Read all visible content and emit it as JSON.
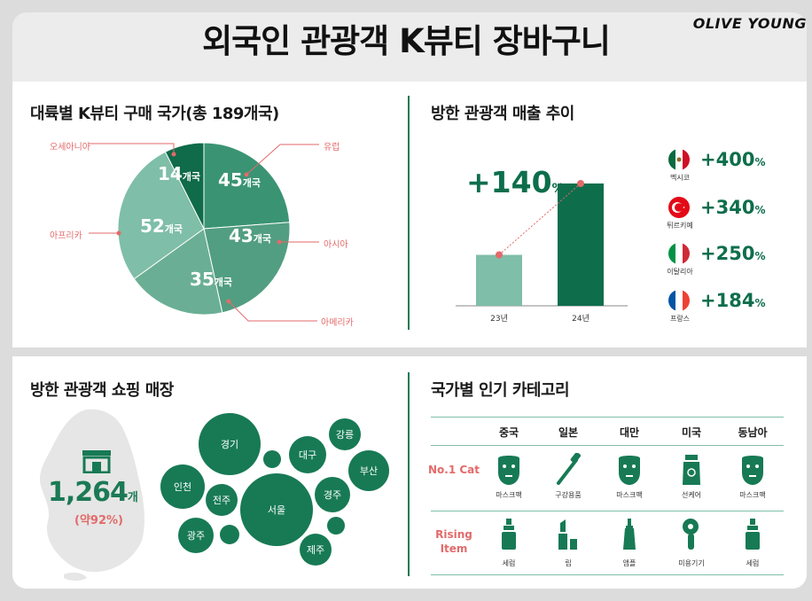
{
  "header": {
    "title": "외국인 관광객 K뷰티 장바구니",
    "brand": "OLIVE YOUNG"
  },
  "continents": {
    "title": "대륙별 K뷰티 구매 국가(총 189개국)",
    "slices": [
      {
        "name": "유럽",
        "value": 45,
        "label": "45",
        "unit": "개국"
      },
      {
        "name": "아시아",
        "value": 43,
        "label": "43",
        "unit": "개국"
      },
      {
        "name": "아메리카",
        "value": 35,
        "label": "35",
        "unit": "개국"
      },
      {
        "name": "아프리카",
        "value": 52,
        "label": "52",
        "unit": "개국"
      },
      {
        "name": "오세아니아",
        "value": 14,
        "label": "14",
        "unit": "개국"
      }
    ]
  },
  "sales": {
    "title": "방한 관광객 매출 추이",
    "growth": "+140",
    "growth_unit": "%",
    "bars": [
      {
        "year": "23년",
        "value": 100
      },
      {
        "year": "24년",
        "value": 240
      }
    ],
    "countries": [
      {
        "name": "멕시코",
        "value": "+400",
        "unit": "%",
        "flag": "mexico"
      },
      {
        "name": "튀르키예",
        "value": "+340",
        "unit": "%",
        "flag": "turkiye"
      },
      {
        "name": "이탈리아",
        "value": "+250",
        "unit": "%",
        "flag": "italy"
      },
      {
        "name": "프랑스",
        "value": "+184",
        "unit": "%",
        "flag": "france"
      }
    ]
  },
  "stores": {
    "title": "방한 관광객 쇼핑 매장",
    "count": "1,264",
    "count_unit": "개",
    "share": "(약92%)",
    "regions": [
      "경기",
      "대구",
      "강릉",
      "부산",
      "인천",
      "전주",
      "서울",
      "경주",
      "광주",
      "제주"
    ]
  },
  "categories": {
    "title": "국가별 인기 카테고리",
    "columns": [
      "중국",
      "일본",
      "대만",
      "미국",
      "동남아"
    ],
    "rows": [
      {
        "label": "No.1 Cat",
        "items": [
          {
            "label": "마스크팩",
            "icon": "mask-icon"
          },
          {
            "label": "구강용품",
            "icon": "toothbrush-icon"
          },
          {
            "label": "마스크팩",
            "icon": "mask-icon"
          },
          {
            "label": "선케어",
            "icon": "sunscreen-icon"
          },
          {
            "label": "마스크팩",
            "icon": "mask-icon"
          }
        ]
      },
      {
        "label": "Rising Item",
        "items": [
          {
            "label": "세럼",
            "icon": "serum-icon"
          },
          {
            "label": "립",
            "icon": "lipstick-icon"
          },
          {
            "label": "앰플",
            "icon": "ampoule-icon"
          },
          {
            "label": "미용기기",
            "icon": "beauty-device-icon"
          },
          {
            "label": "세럼",
            "icon": "serum-icon"
          }
        ]
      }
    ]
  },
  "colors": {
    "accent": "#177a55",
    "highlight": "#e36a6a",
    "light": "#7fbea8"
  },
  "chart_data": [
    {
      "type": "pie",
      "title": "대륙별 K뷰티 구매 국가(총 189개국)",
      "categories": [
        "유럽",
        "아시아",
        "아메리카",
        "아프리카",
        "오세아니아"
      ],
      "values": [
        45,
        43,
        35,
        52,
        14
      ]
    },
    {
      "type": "bar",
      "title": "방한 관광객 매출 추이",
      "categories": [
        "23년",
        "24년"
      ],
      "values": [
        100,
        240
      ],
      "annotations": [
        "+140%"
      ]
    }
  ]
}
